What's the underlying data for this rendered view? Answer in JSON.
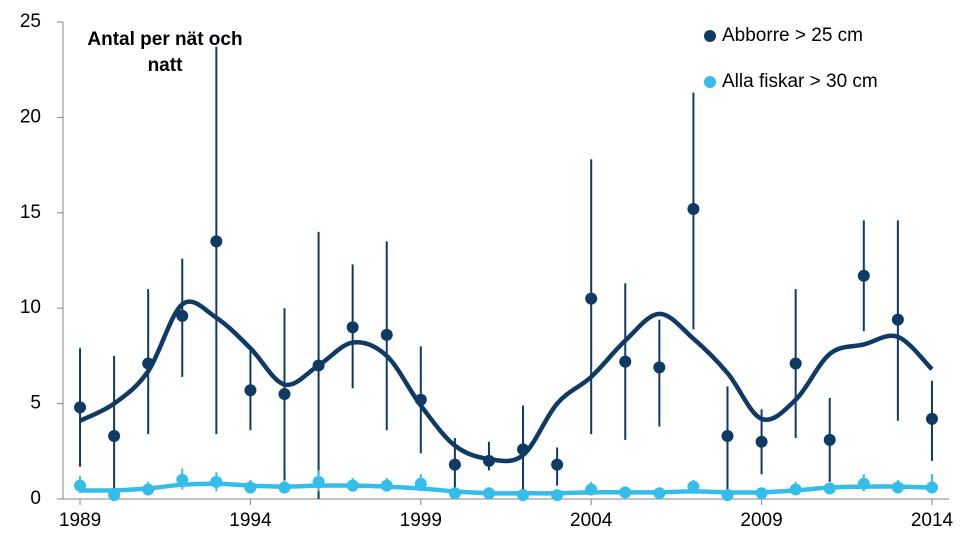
{
  "chart_data": {
    "type": "scatter",
    "y_label": "Antal per nät och natt",
    "x": [
      1989,
      1990,
      1991,
      1992,
      1993,
      1994,
      1995,
      1996,
      1997,
      1998,
      1999,
      2000,
      2001,
      2002,
      2003,
      2004,
      2005,
      2006,
      2007,
      2008,
      2009,
      2010,
      2011,
      2012,
      2013,
      2014
    ],
    "xlim": [
      1988.5,
      2014.5
    ],
    "xticks": [
      1989,
      1994,
      1999,
      2004,
      2009,
      2014
    ],
    "ylim": [
      0,
      25
    ],
    "yticks": [
      0,
      5,
      10,
      15,
      20,
      25
    ],
    "grid": false,
    "legend": "top-right",
    "series": [
      {
        "name": "Abborre > 25 cm",
        "color": "#0f3a64",
        "values": [
          4.8,
          3.3,
          7.1,
          9.6,
          13.5,
          5.7,
          5.5,
          7.0,
          9.0,
          8.6,
          5.2,
          1.8,
          2.0,
          2.6,
          1.8,
          10.5,
          7.2,
          6.9,
          15.2,
          3.3,
          3.0,
          7.1,
          3.1,
          11.7,
          9.4,
          4.2
        ],
        "low": [
          1.7,
          0,
          3.4,
          6.4,
          3.4,
          3.6,
          0.3,
          0,
          5.8,
          3.6,
          2.4,
          0.5,
          1.5,
          0.5,
          0.7,
          3.4,
          3.1,
          3.8,
          8.9,
          0.4,
          1.3,
          3.2,
          0.9,
          8.8,
          4.1,
          2.0
        ],
        "high": [
          7.9,
          7.5,
          11.0,
          12.6,
          23.7,
          7.8,
          10.0,
          14.0,
          12.3,
          13.5,
          8.0,
          3.2,
          3.0,
          4.9,
          2.7,
          17.8,
          11.3,
          9.4,
          21.3,
          5.9,
          4.7,
          11.0,
          5.3,
          14.6,
          14.6,
          6.2
        ],
        "trend": [
          4.1,
          5.0,
          6.7,
          10.2,
          9.5,
          7.9,
          6.0,
          7.0,
          8.2,
          7.5,
          4.9,
          2.8,
          2.1,
          2.3,
          5.0,
          6.4,
          8.3,
          9.7,
          8.4,
          6.6,
          4.2,
          5.2,
          7.6,
          8.1,
          8.5,
          6.8
        ]
      },
      {
        "name": "Alla fiskar > 30 cm",
        "color": "#35bde9",
        "values": [
          0.7,
          0.2,
          0.5,
          1.0,
          0.9,
          0.6,
          0.6,
          0.9,
          0.7,
          0.7,
          0.8,
          0.3,
          0.3,
          0.2,
          0.2,
          0.5,
          0.35,
          0.3,
          0.65,
          0.2,
          0.3,
          0.5,
          0.55,
          0.8,
          0.6,
          0.6
        ],
        "low": [
          0.3,
          0,
          0.2,
          0.5,
          0.4,
          0.3,
          0.3,
          0.4,
          0.4,
          0.4,
          0.4,
          0.1,
          0.1,
          0.05,
          0.05,
          0.2,
          0.15,
          0.1,
          0.3,
          0.05,
          0.1,
          0.2,
          0.3,
          0.4,
          0.3,
          0.3
        ],
        "high": [
          1.2,
          0.5,
          0.9,
          1.6,
          1.4,
          1.0,
          1.0,
          1.5,
          1.1,
          1.1,
          1.3,
          0.6,
          0.6,
          0.4,
          0.4,
          0.9,
          0.6,
          0.6,
          1.0,
          0.4,
          0.6,
          0.9,
          0.8,
          1.3,
          1.0,
          1.3
        ],
        "trend": [
          0.45,
          0.45,
          0.55,
          0.75,
          0.8,
          0.7,
          0.65,
          0.7,
          0.7,
          0.65,
          0.55,
          0.4,
          0.3,
          0.3,
          0.3,
          0.35,
          0.35,
          0.35,
          0.4,
          0.35,
          0.35,
          0.45,
          0.6,
          0.65,
          0.65,
          0.6
        ]
      }
    ]
  }
}
